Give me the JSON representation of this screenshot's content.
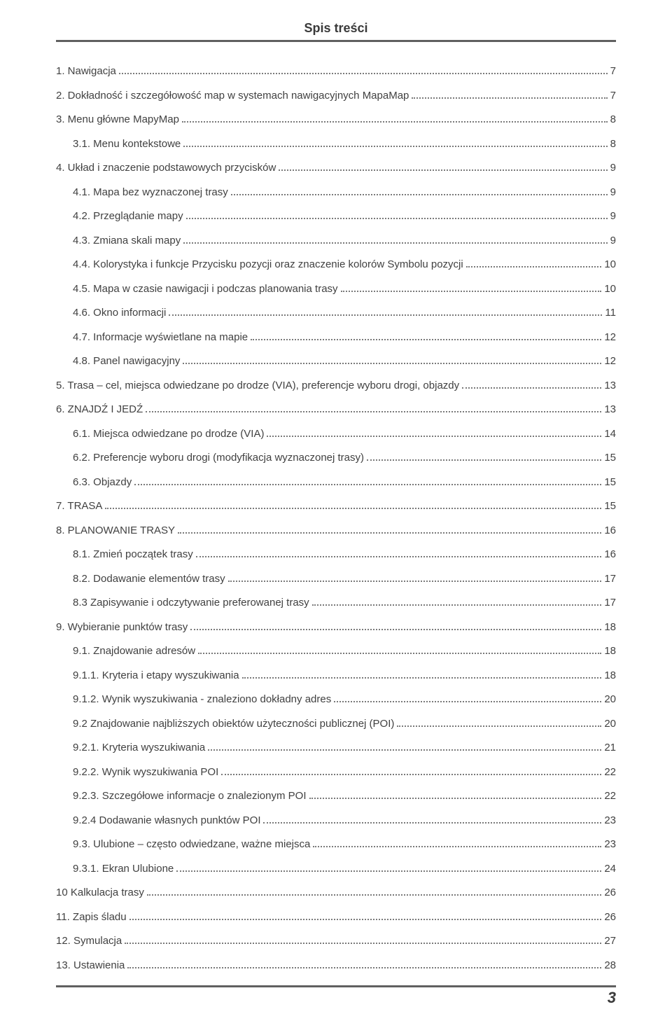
{
  "title": "Spis treści",
  "page_number": "3",
  "colors": {
    "text": "#3a3a3a",
    "rule": "#606060",
    "leader": "#7a7a7a",
    "background": "#ffffff"
  },
  "typography": {
    "title_fontsize_pt": 14,
    "body_fontsize_pt": 11,
    "footer_fontsize_pt": 16,
    "font_family": "Segoe UI / sans-serif"
  },
  "entries": [
    {
      "indent": 0,
      "label": "1. Nawigacja",
      "page": "7"
    },
    {
      "indent": 0,
      "label": "2. Dokładność i szczegółowość map w systemach nawigacyjnych MapaMap",
      "page": "7"
    },
    {
      "indent": 0,
      "label": "3. Menu główne MapyMap",
      "page": "8"
    },
    {
      "indent": 1,
      "label": "3.1. Menu kontekstowe",
      "page": "8"
    },
    {
      "indent": 0,
      "label": "4. Układ i znaczenie podstawowych przycisków",
      "page": "9"
    },
    {
      "indent": 1,
      "label": "4.1. Mapa bez wyznaczonej trasy",
      "page": "9"
    },
    {
      "indent": 1,
      "label": "4.2. Przeglądanie mapy",
      "page": "9"
    },
    {
      "indent": 1,
      "label": "4.3. Zmiana skali mapy",
      "page": "9"
    },
    {
      "indent": 1,
      "label": "4.4. Kolorystyka i funkcje Przycisku pozycji oraz znaczenie kolorów Symbolu pozycji",
      "page": "10"
    },
    {
      "indent": 1,
      "label": "4.5. Mapa w czasie nawigacji i podczas planowania trasy",
      "page": "10"
    },
    {
      "indent": 1,
      "label": "4.6. Okno informacji",
      "page": "11"
    },
    {
      "indent": 1,
      "label": "4.7. Informacje wyświetlane na mapie",
      "page": "12"
    },
    {
      "indent": 1,
      "label": "4.8. Panel nawigacyjny",
      "page": "12"
    },
    {
      "indent": 0,
      "label": "5. Trasa – cel, miejsca odwiedzane po drodze (VIA), preferencje wyboru drogi, objazdy",
      "page": "13"
    },
    {
      "indent": 0,
      "label": "6. ZNAJDŹ I JEDŹ",
      "page": "13"
    },
    {
      "indent": 1,
      "label": "6.1. Miejsca odwiedzane po drodze (VIA)",
      "page": "14"
    },
    {
      "indent": 1,
      "label": "6.2. Preferencje wyboru drogi (modyfikacja wyznaczonej trasy)",
      "page": "15"
    },
    {
      "indent": 1,
      "label": "6.3. Objazdy",
      "page": "15"
    },
    {
      "indent": 0,
      "label": "7. TRASA",
      "page": "15"
    },
    {
      "indent": 0,
      "label": "8. PLANOWANIE TRASY",
      "page": "16"
    },
    {
      "indent": 1,
      "label": "8.1. Zmień początek trasy",
      "page": "16"
    },
    {
      "indent": 1,
      "label": "8.2. Dodawanie elementów trasy",
      "page": "17"
    },
    {
      "indent": 1,
      "label": "8.3 Zapisywanie i odczytywanie preferowanej trasy",
      "page": "17"
    },
    {
      "indent": 0,
      "label": "9. Wybieranie punktów trasy",
      "page": "18"
    },
    {
      "indent": 1,
      "label": "9.1. Znajdowanie adresów",
      "page": "18"
    },
    {
      "indent": 1,
      "label": "9.1.1. Kryteria i etapy wyszukiwania",
      "page": "18"
    },
    {
      "indent": 1,
      "label": "9.1.2. Wynik wyszukiwania - znaleziono dokładny adres",
      "page": "20"
    },
    {
      "indent": 1,
      "label": "9.2 Znajdowanie najbliższych obiektów użyteczności publicznej (POI)",
      "page": "20"
    },
    {
      "indent": 1,
      "label": "9.2.1. Kryteria wyszukiwania",
      "page": "21"
    },
    {
      "indent": 1,
      "label": "9.2.2. Wynik wyszukiwania POI",
      "page": "22"
    },
    {
      "indent": 1,
      "label": "9.2.3. Szczegółowe informacje o znalezionym POI",
      "page": "22"
    },
    {
      "indent": 1,
      "label": "9.2.4 Dodawanie własnych punktów POI",
      "page": "23"
    },
    {
      "indent": 1,
      "label": "9.3. Ulubione – często odwiedzane, ważne miejsca",
      "page": "23"
    },
    {
      "indent": 1,
      "label": "9.3.1. Ekran Ulubione",
      "page": "24"
    },
    {
      "indent": 0,
      "label": "10  Kalkulacja trasy",
      "page": "26"
    },
    {
      "indent": 0,
      "label": "11. Zapis śladu",
      "page": "26"
    },
    {
      "indent": 0,
      "label": "12.  Symulacja",
      "page": "27"
    },
    {
      "indent": 0,
      "label": "13. Ustawienia",
      "page": "28"
    }
  ]
}
